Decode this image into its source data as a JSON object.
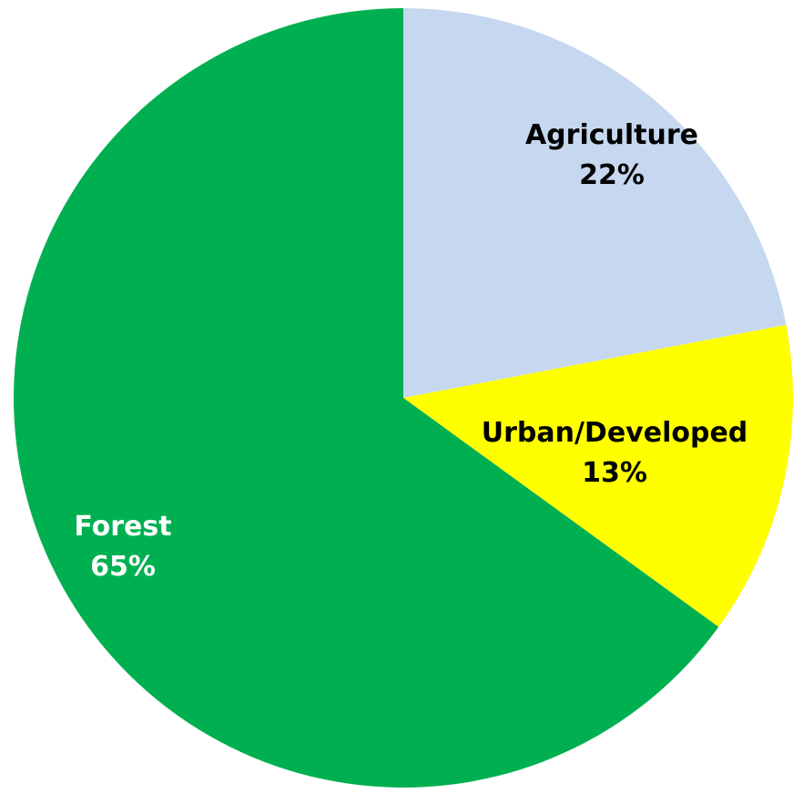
{
  "chart_data": {
    "type": "pie",
    "title": "",
    "slices": [
      {
        "label": "Agriculture",
        "value": 22,
        "value_label": "22%",
        "color": "#c6d8f0",
        "label_color": "#000000"
      },
      {
        "label": "Urban/Developed",
        "value": 13,
        "value_label": "13%",
        "color": "#ffff00",
        "label_color": "#000000"
      },
      {
        "label": "Forest",
        "value": 65,
        "value_label": "65%",
        "color": "#00b050",
        "label_color": "#ffffff"
      }
    ],
    "start_angle_deg": 0,
    "direction": "clockwise",
    "legend": "none"
  }
}
